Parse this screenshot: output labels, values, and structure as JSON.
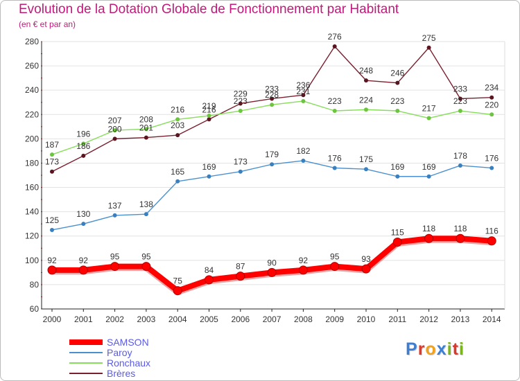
{
  "title": "Evolution de la Dotation Globale de Fonctionnement par Habitant",
  "subtitle": "(en € et par an)",
  "brand": "Proxiti",
  "brand_letters": [
    {
      "ch": "P",
      "color": "#3a7fd5"
    },
    {
      "ch": "r",
      "color": "#e0372b"
    },
    {
      "ch": "o",
      "color": "#f2a21b"
    },
    {
      "ch": "x",
      "color": "#3a7fd5"
    },
    {
      "ch": "i",
      "color": "#7ab51d"
    },
    {
      "ch": "t",
      "color": "#e0372b"
    },
    {
      "ch": "i",
      "color": "#7ab51d"
    }
  ],
  "chart_data": {
    "type": "line",
    "title": "Evolution de la Dotation Globale de Fonctionnement par Habitant",
    "ylabel": "(en € et par an)",
    "xlabel": "",
    "x": [
      2000,
      2001,
      2002,
      2003,
      2004,
      2005,
      2006,
      2007,
      2008,
      2009,
      2010,
      2011,
      2012,
      2013,
      2014
    ],
    "ylim": [
      60,
      280
    ],
    "yticks": [
      60,
      80,
      100,
      120,
      140,
      160,
      180,
      200,
      220,
      240,
      260,
      280
    ],
    "grid": "horizontal",
    "legend_position": "bottom-left",
    "series": [
      {
        "name": "Brères",
        "color": "#7a1f2e",
        "marker": "#5a1620",
        "values": [
          173,
          186,
          200,
          201,
          203,
          216,
          229,
          233,
          236,
          276,
          248,
          246,
          275,
          233,
          234
        ]
      },
      {
        "name": "Ronchaux",
        "color": "#86dd5a",
        "marker": "#6cc43f",
        "values": [
          187,
          196,
          207,
          208,
          216,
          219,
          223,
          228,
          231,
          223,
          224,
          223,
          217,
          223,
          220
        ]
      },
      {
        "name": "Paroy",
        "color": "#4a90cf",
        "marker": "#3a80bf",
        "values": [
          125,
          130,
          137,
          138,
          165,
          169,
          173,
          179,
          182,
          176,
          175,
          169,
          169,
          178,
          176
        ]
      },
      {
        "name": "SAMSON",
        "color": "#ff0000",
        "marker": "#ff0000",
        "values": [
          92,
          92,
          95,
          95,
          75,
          84,
          87,
          90,
          92,
          95,
          93,
          115,
          118,
          118,
          116
        ]
      }
    ],
    "legend_order": [
      "SAMSON",
      "Paroy",
      "Ronchaux",
      "Brères"
    ]
  }
}
